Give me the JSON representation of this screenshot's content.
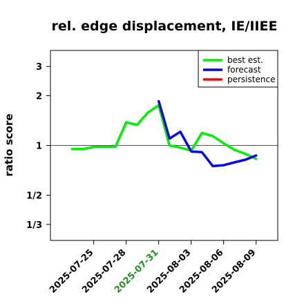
{
  "chart_data": {
    "type": "line",
    "title": "rel. edge displacement, IE/IIEE",
    "ylabel": "ratio score",
    "xlabel": "",
    "y_scale": "log",
    "ylim": [
      0.2667,
      3.75
    ],
    "y_ticks": [
      {
        "value": 0.3333,
        "label": "1/3"
      },
      {
        "value": 0.5,
        "label": "1/2"
      },
      {
        "value": 1,
        "label": "1"
      },
      {
        "value": 2,
        "label": "2"
      },
      {
        "value": 3,
        "label": "3"
      }
    ],
    "x_range": [
      "2025-07-21",
      "2025-08-11"
    ],
    "x_ticks": [
      {
        "value": "2025-07-25",
        "label": "2025-07-25",
        "color": "#000000"
      },
      {
        "value": "2025-07-28",
        "label": "2025-07-28",
        "color": "#000000"
      },
      {
        "value": "2025-07-31",
        "label": "2025-07-31",
        "color": "#228B22"
      },
      {
        "value": "2025-08-03",
        "label": "2025-08-03",
        "color": "#000000"
      },
      {
        "value": "2025-08-06",
        "label": "2025-08-06",
        "color": "#000000"
      },
      {
        "value": "2025-08-09",
        "label": "2025-08-09",
        "color": "#000000"
      }
    ],
    "reference_line": 1,
    "legend_position": "top-right",
    "series": [
      {
        "name": "best est.",
        "color": "#00ee00",
        "x": [
          "2025-07-23",
          "2025-07-24",
          "2025-07-25",
          "2025-07-26",
          "2025-07-27",
          "2025-07-28",
          "2025-07-29",
          "2025-07-30",
          "2025-07-31",
          "2025-08-01",
          "2025-08-02",
          "2025-08-03",
          "2025-08-04",
          "2025-08-05",
          "2025-08-06",
          "2025-08-07",
          "2025-08-08",
          "2025-08-09"
        ],
        "y": [
          0.95,
          0.95,
          0.98,
          0.98,
          0.98,
          1.38,
          1.33,
          1.58,
          1.75,
          1.0,
          0.97,
          0.93,
          1.19,
          1.14,
          1.03,
          0.94,
          0.89,
          0.83
        ]
      },
      {
        "name": "forecast",
        "color": "#0000ee",
        "x": [
          "2025-07-31",
          "2025-08-01",
          "2025-08-02",
          "2025-08-03",
          "2025-08-04",
          "2025-08-05",
          "2025-08-06",
          "2025-08-07",
          "2025-08-08",
          "2025-08-09"
        ],
        "y": [
          1.85,
          1.1,
          1.21,
          0.92,
          0.91,
          0.75,
          0.76,
          0.79,
          0.82,
          0.87
        ]
      },
      {
        "name": "persistence",
        "color": "#ff0000",
        "x": [],
        "y": []
      }
    ]
  }
}
